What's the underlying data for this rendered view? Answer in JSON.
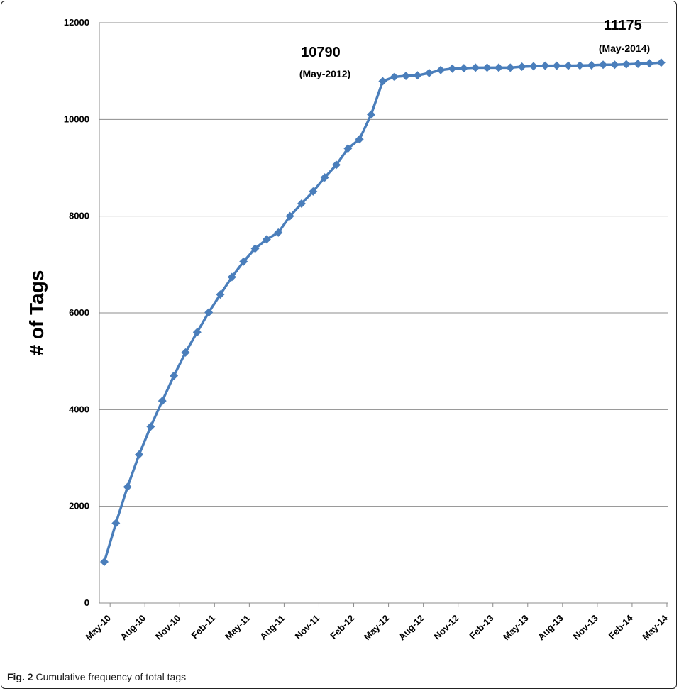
{
  "caption": {
    "label": "Fig. 2",
    "text": "Cumulative frequency of total tags"
  },
  "chart_data": {
    "type": "line",
    "title": "",
    "xlabel": "",
    "ylabel": "# of Tags",
    "ylim": [
      0,
      12000
    ],
    "yticks": [
      0,
      2000,
      4000,
      6000,
      8000,
      10000,
      12000
    ],
    "grid": "horizontal",
    "series_color": "#4a7ebb",
    "x_tick_labels": [
      "May-10",
      "Aug-10",
      "Nov-10",
      "Feb-11",
      "May-11",
      "Aug-11",
      "Nov-11",
      "Feb-12",
      "May-12",
      "Aug-12",
      "Nov-12",
      "Feb-13",
      "May-13",
      "Aug-13",
      "Nov-13",
      "Feb-14",
      "May-14"
    ],
    "series": [
      {
        "x": [
          "May-10",
          "Jun-10",
          "Jul-10",
          "Aug-10",
          "Sep-10",
          "Oct-10",
          "Nov-10",
          "Dec-10",
          "Jan-11",
          "Feb-11",
          "Mar-11",
          "Apr-11",
          "May-11",
          "Jun-11",
          "Jul-11",
          "Aug-11",
          "Sep-11",
          "Oct-11",
          "Nov-11",
          "Dec-11",
          "Jan-12",
          "Feb-12",
          "Mar-12",
          "Apr-12",
          "May-12",
          "Jun-12",
          "Jul-12",
          "Aug-12",
          "Sep-12",
          "Oct-12",
          "Nov-12",
          "Dec-12",
          "Jan-13",
          "Feb-13",
          "Mar-13",
          "Apr-13",
          "May-13",
          "Jun-13",
          "Jul-13",
          "Aug-13",
          "Sep-13",
          "Oct-13",
          "Nov-13",
          "Dec-13",
          "Jan-14",
          "Feb-14",
          "Mar-14",
          "Apr-14",
          "May-14"
        ],
        "values": [
          850,
          1650,
          2400,
          3070,
          3650,
          4180,
          4700,
          5180,
          5600,
          6010,
          6380,
          6740,
          7060,
          7330,
          7520,
          7660,
          8000,
          8260,
          8510,
          8800,
          9060,
          9400,
          9590,
          10100,
          10790,
          10880,
          10900,
          10910,
          10960,
          11020,
          11050,
          11060,
          11070,
          11070,
          11070,
          11070,
          11090,
          11100,
          11110,
          11110,
          11110,
          11115,
          11120,
          11130,
          11130,
          11140,
          11150,
          11160,
          11175
        ]
      }
    ],
    "annotations": [
      {
        "value": "10790",
        "date": "(May-2012)"
      },
      {
        "value": "11175",
        "date": "(May-2014)"
      }
    ]
  }
}
